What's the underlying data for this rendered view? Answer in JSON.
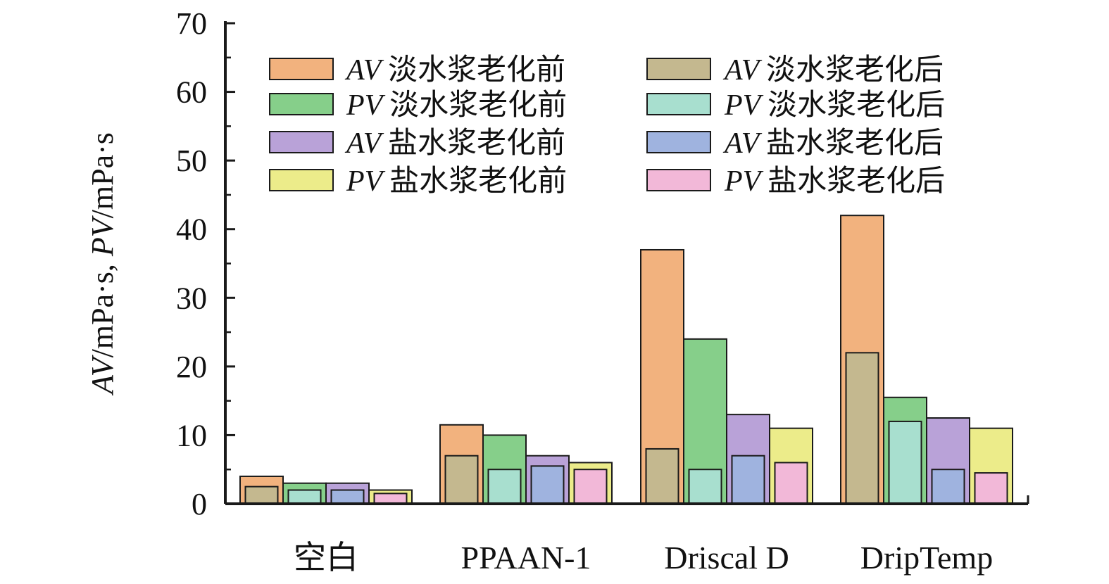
{
  "chart_data": {
    "type": "bar",
    "title": "",
    "xlabel": "",
    "ylabel": {
      "parts": [
        {
          "text": "AV",
          "italic": true
        },
        {
          "text": "/mPa·s, ",
          "italic": false
        },
        {
          "text": "PV",
          "italic": true
        },
        {
          "text": "/mPa·s",
          "italic": false
        }
      ]
    },
    "ylim": [
      0,
      70
    ],
    "y_ticks": [
      0,
      10,
      20,
      30,
      40,
      50,
      60,
      70
    ],
    "grid": false,
    "legend_position": "top",
    "categories": [
      "空白",
      "PPAAN-1",
      "Driscal D",
      "DripTemp"
    ],
    "series": [
      {
        "name": "AV 淡水浆老化前",
        "prefix": "AV",
        "suffix": "淡水浆老化前",
        "group": 0,
        "layer": "before",
        "color": "#f2b27e",
        "values": [
          4,
          11.5,
          37,
          42
        ]
      },
      {
        "name": "PV 淡水浆老化前",
        "prefix": "PV",
        "suffix": "淡水浆老化前",
        "group": 1,
        "layer": "before",
        "color": "#86cf8a",
        "values": [
          3,
          10,
          24,
          15.5
        ]
      },
      {
        "name": "AV 盐水浆老化前",
        "prefix": "AV",
        "suffix": "盐水浆老化前",
        "group": 2,
        "layer": "before",
        "color": "#b9a2d8",
        "values": [
          3,
          7,
          13,
          12.5
        ]
      },
      {
        "name": "PV 盐水浆老化前",
        "prefix": "PV",
        "suffix": "盐水浆老化前",
        "group": 3,
        "layer": "before",
        "color": "#ecec8a",
        "values": [
          2,
          6,
          11,
          11
        ]
      },
      {
        "name": "AV 淡水浆老化后",
        "prefix": "AV",
        "suffix": "淡水浆老化后",
        "group": 0,
        "layer": "after",
        "color": "#c4b88f",
        "values": [
          2.5,
          7,
          8,
          22
        ]
      },
      {
        "name": "PV 淡水浆老化后",
        "prefix": "PV",
        "suffix": "淡水浆老化后",
        "group": 1,
        "layer": "after",
        "color": "#a8dfcf",
        "values": [
          2,
          5,
          5,
          12
        ]
      },
      {
        "name": "AV 盐水浆老化后",
        "prefix": "AV",
        "suffix": "盐水浆老化后",
        "group": 2,
        "layer": "after",
        "color": "#9fb3df",
        "values": [
          2,
          5.5,
          7,
          5
        ]
      },
      {
        "name": "PV 盐水浆老化后",
        "prefix": "PV",
        "suffix": "盐水浆老化后",
        "group": 3,
        "layer": "after",
        "color": "#f2b8d8",
        "values": [
          1.5,
          5,
          6,
          4.5
        ]
      }
    ]
  }
}
